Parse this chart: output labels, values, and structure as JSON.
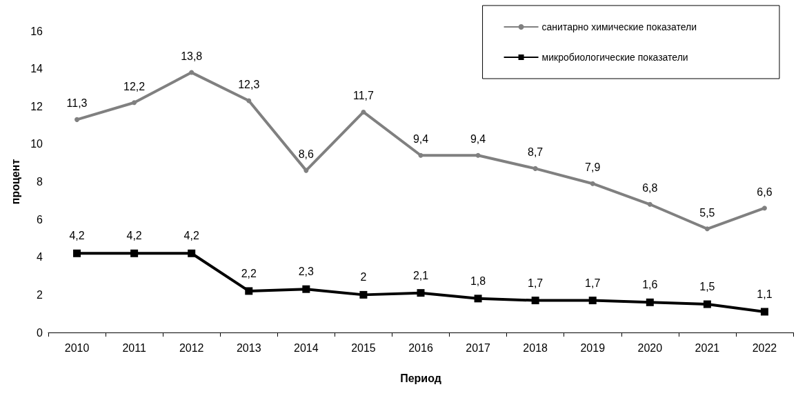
{
  "chart_data": {
    "type": "line",
    "xlabel": "Период",
    "ylabel": "процент",
    "categories": [
      "2010",
      "2011",
      "2012",
      "2013",
      "2014",
      "2015",
      "2016",
      "2017",
      "2018",
      "2019",
      "2020",
      "2021",
      "2022"
    ],
    "series": [
      {
        "name": "санитарно химические показатели",
        "color": "#808080",
        "marker": "circle",
        "values": [
          11.3,
          12.2,
          13.8,
          12.3,
          8.6,
          11.7,
          9.4,
          9.4,
          8.7,
          7.9,
          6.8,
          5.5,
          6.6
        ],
        "value_labels": [
          "11,3",
          "12,2",
          "13,8",
          "12,3",
          "8,6",
          "11,7",
          "9,4",
          "9,4",
          "8,7",
          "7,9",
          "6,8",
          "5,5",
          "6,6"
        ]
      },
      {
        "name": "микробиологические показатели",
        "color": "#000000",
        "marker": "square",
        "values": [
          4.2,
          4.2,
          4.2,
          2.2,
          2.3,
          2,
          2.1,
          1.8,
          1.7,
          1.7,
          1.6,
          1.5,
          1.1
        ],
        "value_labels": [
          "4,2",
          "4,2",
          "4,2",
          "2,2",
          "2,3",
          "2",
          "2,1",
          "1,8",
          "1,7",
          "1,7",
          "1,6",
          "1,5",
          "1,1"
        ]
      }
    ],
    "ylim": [
      0,
      16
    ],
    "yticks": [
      0,
      2,
      4,
      6,
      8,
      10,
      12,
      14,
      16
    ],
    "grid": false,
    "legend": "top right",
    "line_style": "solid"
  }
}
